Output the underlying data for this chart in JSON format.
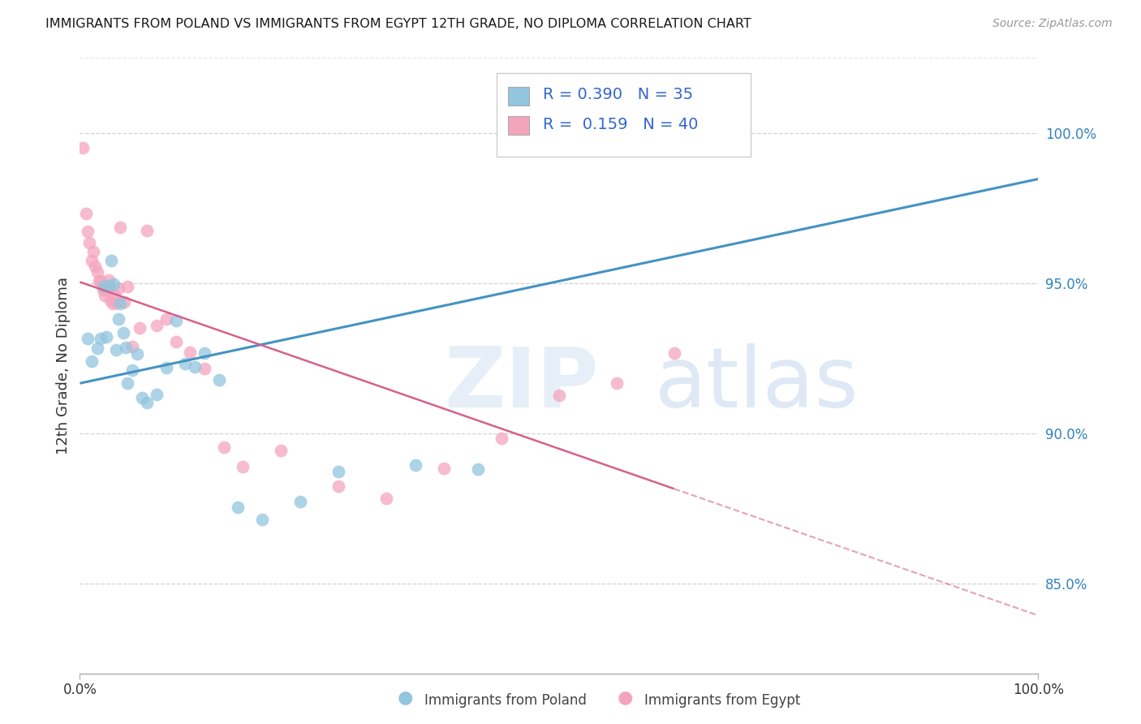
{
  "title": "IMMIGRANTS FROM POLAND VS IMMIGRANTS FROM EGYPT 12TH GRADE, NO DIPLOMA CORRELATION CHART",
  "source": "Source: ZipAtlas.com",
  "ylabel": "12th Grade, No Diploma",
  "xlim": [
    0.0,
    1.0
  ],
  "ylim": [
    0.82,
    1.025
  ],
  "yticks": [
    0.85,
    0.9,
    0.95,
    1.0
  ],
  "ytick_labels": [
    "85.0%",
    "90.0%",
    "95.0%",
    "100.0%"
  ],
  "xtick_labels": [
    "0.0%",
    "100.0%"
  ],
  "poland_R": 0.39,
  "poland_N": 35,
  "egypt_R": 0.159,
  "egypt_N": 40,
  "poland_color": "#92c5de",
  "egypt_color": "#f4a5be",
  "poland_line_color": "#4393c3",
  "egypt_line_color": "#d6618a",
  "watermark_color": "#dce9f5",
  "watermark_atlas_color": "#c5d8ee",
  "background_color": "#ffffff",
  "grid_color": "#cccccc",
  "ytick_color": "#3182bd",
  "title_color": "#1a1a1a",
  "source_color": "#999999",
  "legend_text_color": "#3366cc",
  "bottom_label_color": "#444444"
}
